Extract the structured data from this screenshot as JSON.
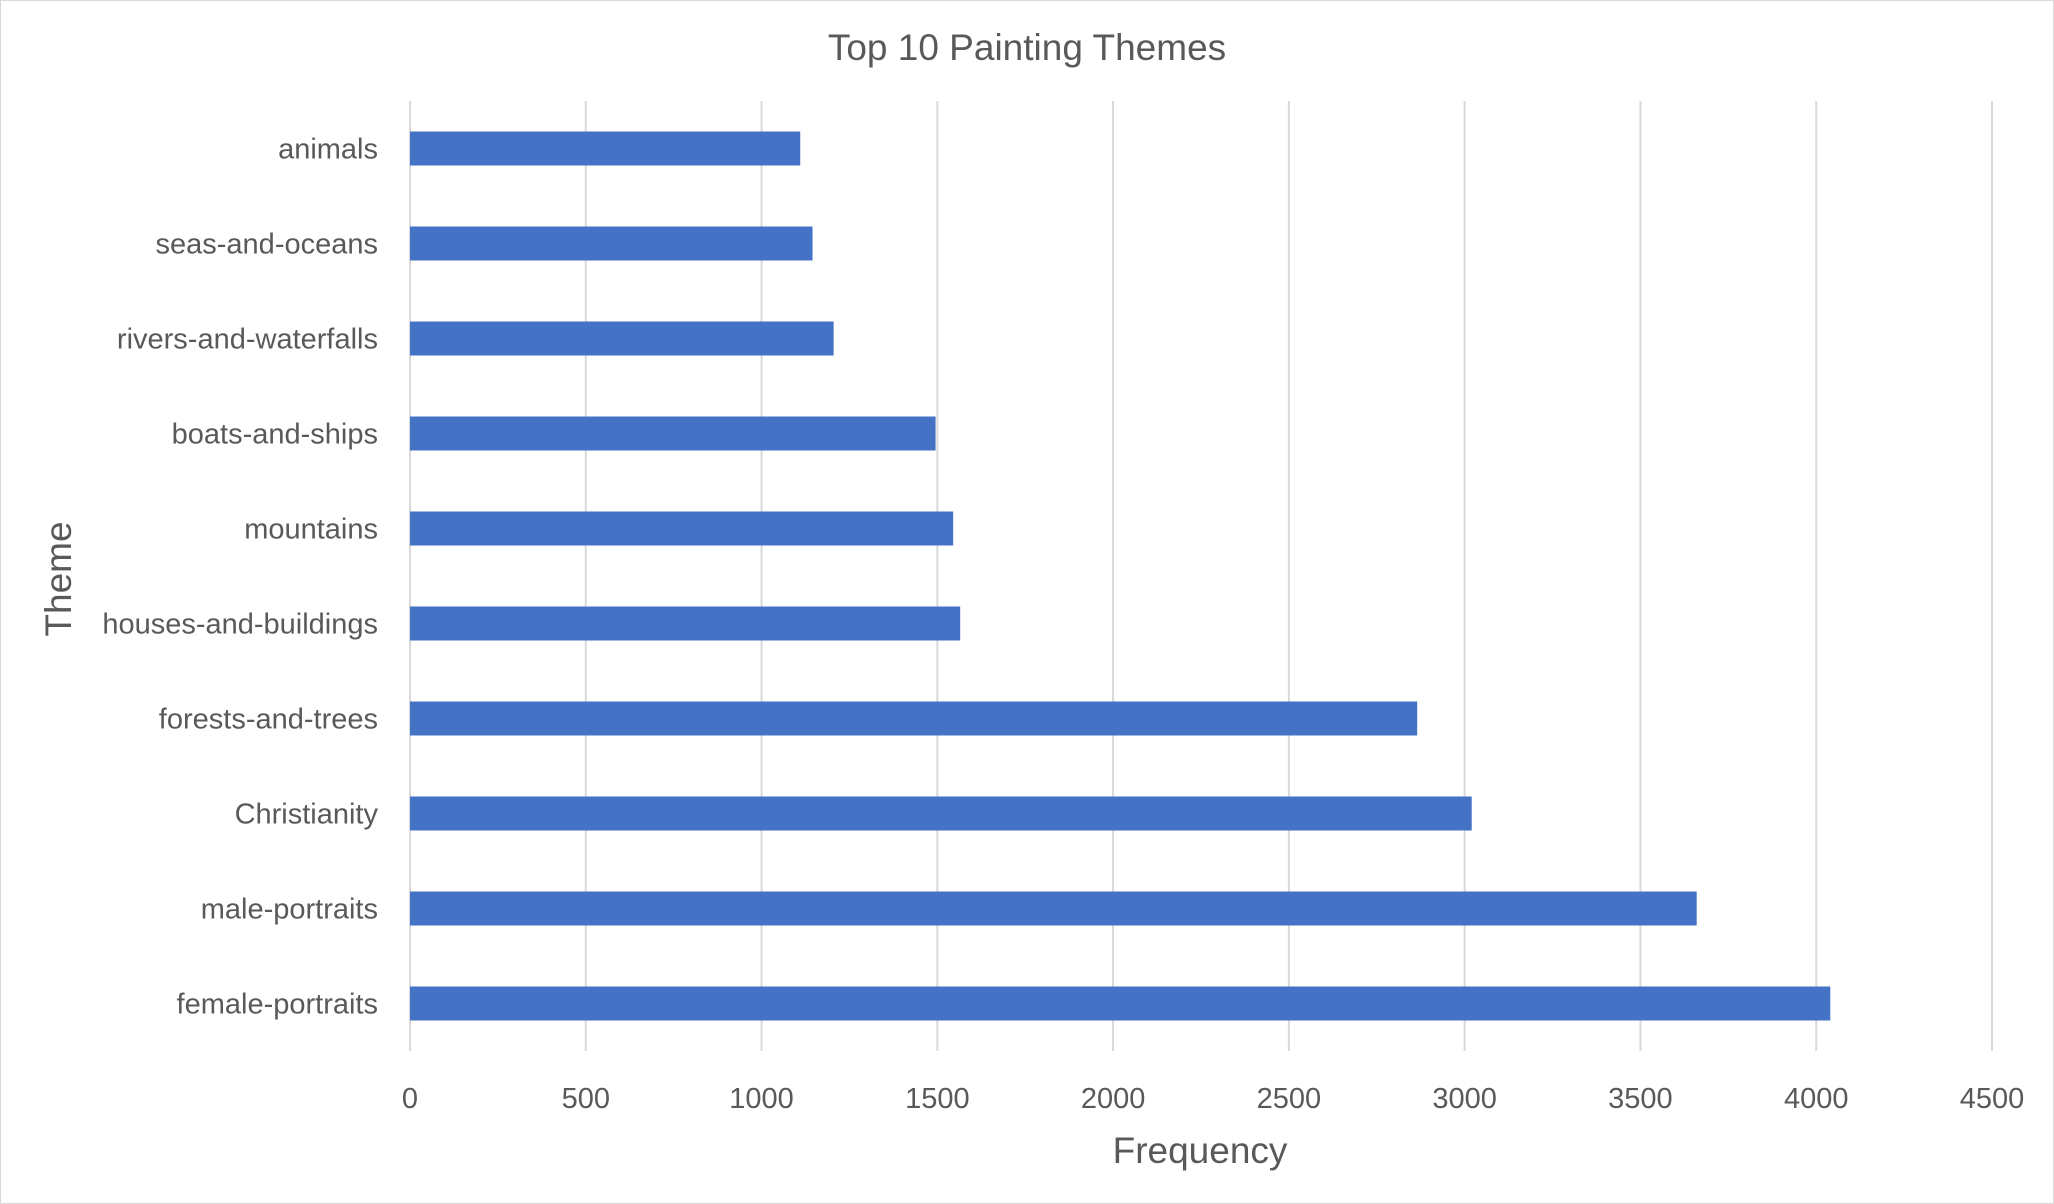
{
  "chart_data": {
    "type": "bar",
    "orientation": "horizontal",
    "title": "Top 10 Painting Themes",
    "xlabel": "Frequency",
    "ylabel": "Theme",
    "categories": [
      "animals",
      "seas-and-oceans",
      "rivers-and-waterfalls",
      "boats-and-ships",
      "mountains",
      "houses-and-buildings",
      "forests-and-trees",
      "Christianity",
      "male-portraits",
      "female-portraits"
    ],
    "values": [
      1110,
      1145,
      1205,
      1495,
      1545,
      1565,
      2865,
      3020,
      3660,
      4040
    ],
    "xlim": [
      0,
      4500
    ],
    "xticks": [
      "0",
      "500",
      "1000",
      "1500",
      "2000",
      "2500",
      "3000",
      "3500",
      "4000",
      "4500"
    ],
    "grid": "vertical",
    "legend": "none",
    "bar_color": "#4472c4"
  }
}
